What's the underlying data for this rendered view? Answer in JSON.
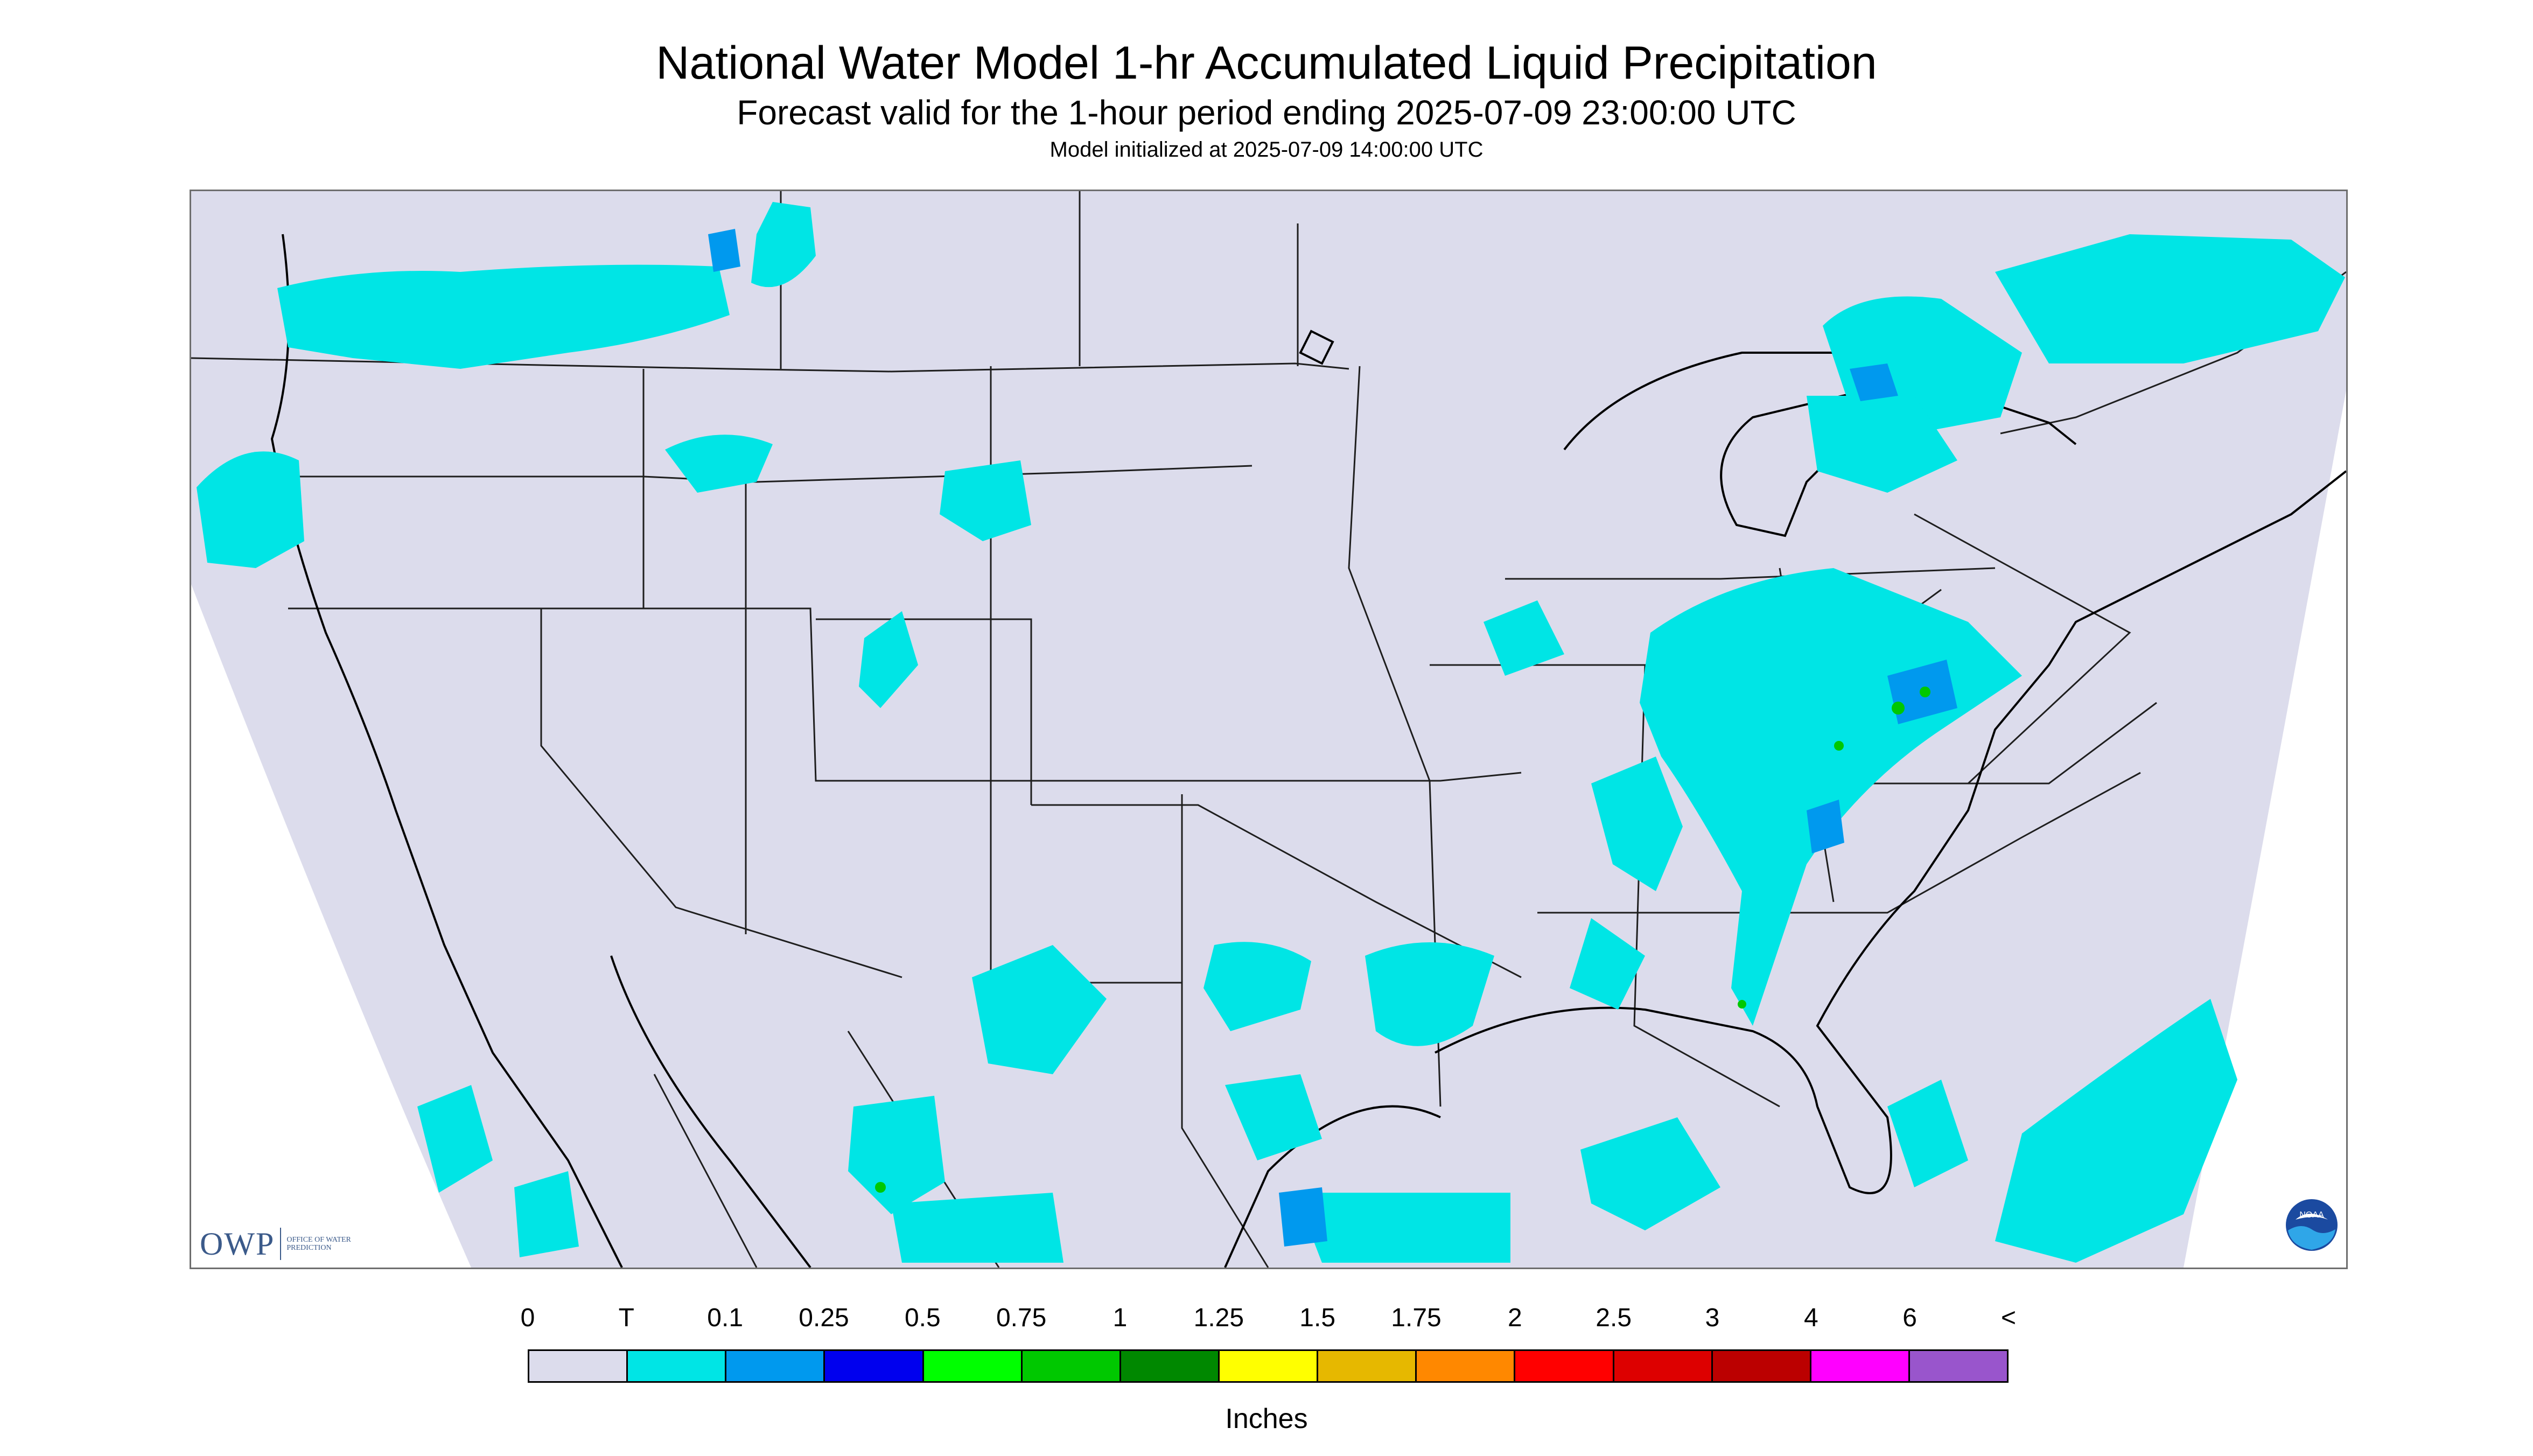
{
  "title": "National Water Model 1-hr Accumulated Liquid Precipitation",
  "subtitle": "Forecast valid for the 1-hour period ending 2025-07-09 23:00:00 UTC",
  "init_note": "Model initialized at 2025-07-09 14:00:00 UTC",
  "units_label": "Inches",
  "owp_logo": {
    "mark": "OWP",
    "text": "OFFICE OF WATER PREDICTION"
  },
  "noaa_logo": {
    "text": "NOAA"
  },
  "colors": {
    "map_background": "#dcdcec",
    "outside_projection": "#ffffff",
    "boundary": "#1e1e1e",
    "coast": "#000000"
  },
  "legend": {
    "labels": [
      "0",
      "T",
      "0.1",
      "0.25",
      "0.5",
      "0.75",
      "1",
      "1.25",
      "1.5",
      "1.75",
      "2",
      "2.5",
      "3",
      "4",
      "6",
      "<"
    ],
    "colors": [
      "#dcdcec",
      "#00e5e5",
      "#0099ee",
      "#0000ee",
      "#00ff00",
      "#00c800",
      "#008800",
      "#ffff00",
      "#e6b800",
      "#ff8800",
      "#ff0000",
      "#dd0000",
      "#bb0000",
      "#ff00ff",
      "#9955cc"
    ]
  }
}
